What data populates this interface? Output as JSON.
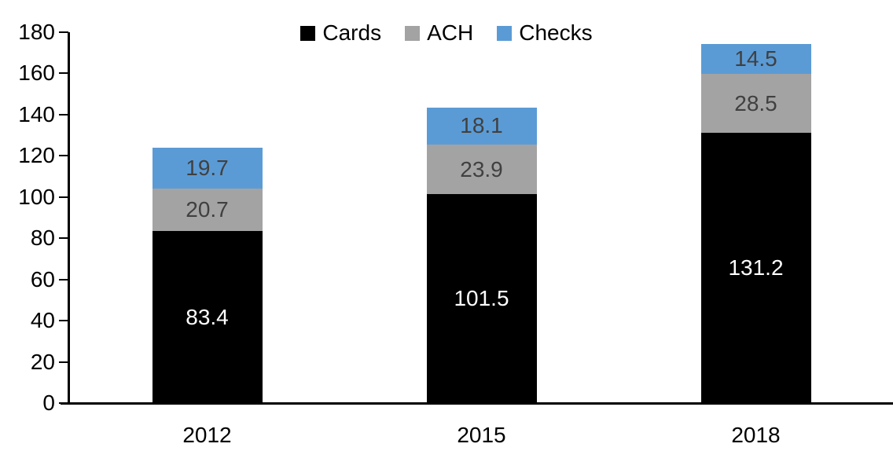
{
  "chart_data": {
    "type": "bar",
    "stacked": true,
    "title": "",
    "categories": [
      "2012",
      "2015",
      "2018"
    ],
    "series": [
      {
        "name": "Cards",
        "color": "#000000",
        "label_color": "#ffffff",
        "values": [
          83.4,
          101.5,
          131.2
        ]
      },
      {
        "name": "ACH",
        "color": "#a3a3a3",
        "label_color": "#404040",
        "values": [
          20.7,
          23.9,
          28.5
        ]
      },
      {
        "name": "Checks",
        "color": "#5b9bd5",
        "label_color": "#404040",
        "values": [
          19.7,
          18.1,
          14.5
        ]
      }
    ],
    "labels": {
      "Cards": [
        "83.4",
        "101.5",
        "131.2"
      ],
      "ACH": [
        "20.7",
        "23.9",
        "28.5"
      ],
      "Checks": [
        "19.7",
        "18.1",
        "14.5"
      ]
    },
    "ylim": [
      0,
      180
    ],
    "yticks": [
      "0",
      "20",
      "40",
      "60",
      "80",
      "100",
      "120",
      "140",
      "160",
      "180"
    ],
    "ytick_step": 20,
    "xlabel": "",
    "ylabel": "",
    "grid": false,
    "legend_position": "top",
    "axis_color": "#000000"
  }
}
